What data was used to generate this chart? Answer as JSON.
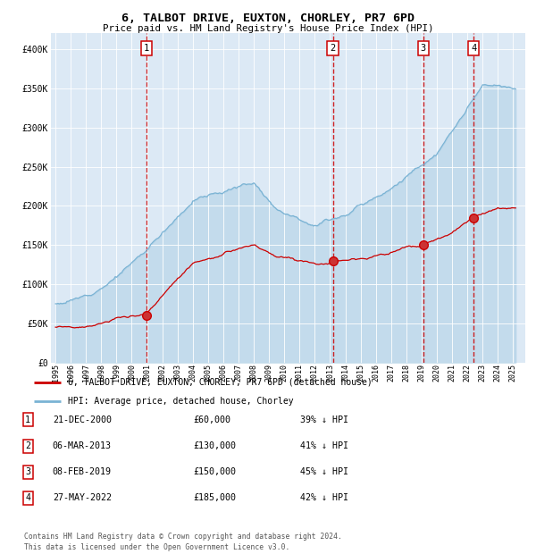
{
  "title": "6, TALBOT DRIVE, EUXTON, CHORLEY, PR7 6PD",
  "subtitle": "Price paid vs. HM Land Registry's House Price Index (HPI)",
  "bg_color": "#dce9f5",
  "hpi_color": "#7ab3d4",
  "price_color": "#cc0000",
  "vline_color": "#cc0000",
  "ylim": [
    0,
    420000
  ],
  "yticks": [
    0,
    50000,
    100000,
    150000,
    200000,
    250000,
    300000,
    350000,
    400000
  ],
  "xlim_start": 1994.7,
  "xlim_end": 2025.8,
  "sales": [
    {
      "label": "1",
      "date_str": "21-DEC-2000",
      "year": 2000.97,
      "price": 60000
    },
    {
      "label": "2",
      "date_str": "06-MAR-2013",
      "year": 2013.18,
      "price": 130000
    },
    {
      "label": "3",
      "date_str": "08-FEB-2019",
      "year": 2019.1,
      "price": 150000
    },
    {
      "label": "4",
      "date_str": "27-MAY-2022",
      "year": 2022.41,
      "price": 185000
    }
  ],
  "legend_labels": [
    "6, TALBOT DRIVE, EUXTON, CHORLEY, PR7 6PD (detached house)",
    "HPI: Average price, detached house, Chorley"
  ],
  "table_rows": [
    {
      "num": "1",
      "date": "21-DEC-2000",
      "price": "£60,000",
      "hpi": "39% ↓ HPI"
    },
    {
      "num": "2",
      "date": "06-MAR-2013",
      "price": "£130,000",
      "hpi": "41% ↓ HPI"
    },
    {
      "num": "3",
      "date": "08-FEB-2019",
      "price": "£150,000",
      "hpi": "45% ↓ HPI"
    },
    {
      "num": "4",
      "date": "27-MAY-2022",
      "price": "£185,000",
      "hpi": "42% ↓ HPI"
    }
  ],
  "footer": "Contains HM Land Registry data © Crown copyright and database right 2024.\nThis data is licensed under the Open Government Licence v3.0."
}
